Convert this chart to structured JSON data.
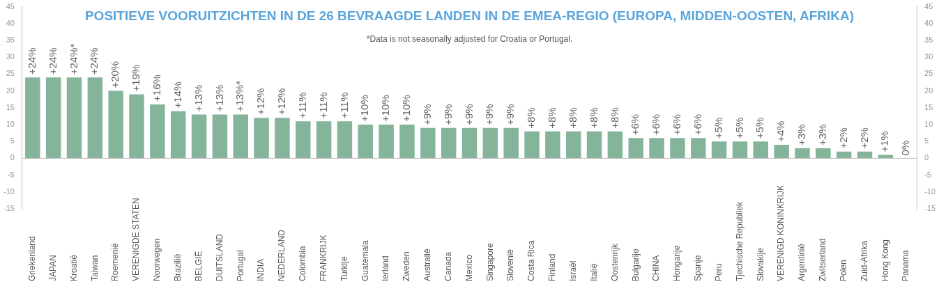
{
  "chart_data": {
    "type": "bar",
    "title": "POSITIEVE VOORUITZICHTEN IN DE 26 BEVRAAGDE LANDEN IN DE EMEA-REGIO (EUROPA, MIDDEN-OOSTEN, AFRIKA)",
    "subtitle": "*Data is not seasonally adjusted for Croatia or Portugal.",
    "categories": [
      "Griekenland",
      "JAPAN",
      "Kroatië",
      "Taiwan",
      "Roemenië",
      "VERENIGDE STATEN",
      "Noorwegen",
      "Brazilië",
      "BELGIË",
      "DUITSLAND",
      "Portugal",
      "INDIA",
      "NEDERLAND",
      "Colombia",
      "FRANKRIJK",
      "Turkije",
      "Guatemala",
      "Ierland",
      "Zweden",
      "Australië",
      "Canada",
      "Mexico",
      "Singapore",
      "Slovenië",
      "Costa Rica",
      "Finland",
      "Israël",
      "Italië",
      "Oostenrijk",
      "Bulgarije",
      "CHINA",
      "Hongarije",
      "Spanje",
      "Peru",
      "Tjechische Republiek",
      "Slovakije",
      "VERENIGD KONINKRIJK",
      "Argentinië",
      "Zwitserland",
      "Polen",
      "Zuid-Afrika",
      "Hong Kong",
      "Panama"
    ],
    "values": [
      24,
      24,
      24,
      24,
      20,
      19,
      16,
      14,
      13,
      13,
      13,
      12,
      12,
      11,
      11,
      11,
      10,
      10,
      10,
      9,
      9,
      9,
      9,
      9,
      8,
      8,
      8,
      8,
      8,
      6,
      6,
      6,
      6,
      5,
      5,
      5,
      4,
      3,
      3,
      2,
      2,
      1,
      0
    ],
    "value_labels": [
      "+24%",
      "+24%",
      "+24%*",
      "+24%",
      "+20%",
      "+19%",
      "+16%",
      "+14%",
      "+13%",
      "+13%",
      "+13%*",
      "+12%",
      "+12%",
      "+11%",
      "+11%",
      "+11%",
      "+10%",
      "+10%",
      "+10%",
      "+9%",
      "+9%",
      "+9%",
      "+9%",
      "+9%",
      "+8%",
      "+8%",
      "+8%",
      "+8%",
      "+8%",
      "+6%",
      "+6%",
      "+6%",
      "+6%",
      "+5%",
      "+5%",
      "+5%",
      "+4%",
      "+3%",
      "+3%",
      "+2%",
      "+2%",
      "+1%",
      "0%"
    ],
    "color": "#84b59b",
    "ylim": [
      -15,
      45
    ],
    "yticks": [
      -15,
      -10,
      -5,
      0,
      5,
      10,
      15,
      20,
      25,
      30,
      35,
      40,
      45
    ],
    "y2lim": [
      -15,
      45
    ],
    "y2ticks": [
      -15,
      -10,
      -5,
      0,
      5,
      10,
      15,
      20,
      25,
      30,
      35,
      40,
      45
    ]
  }
}
